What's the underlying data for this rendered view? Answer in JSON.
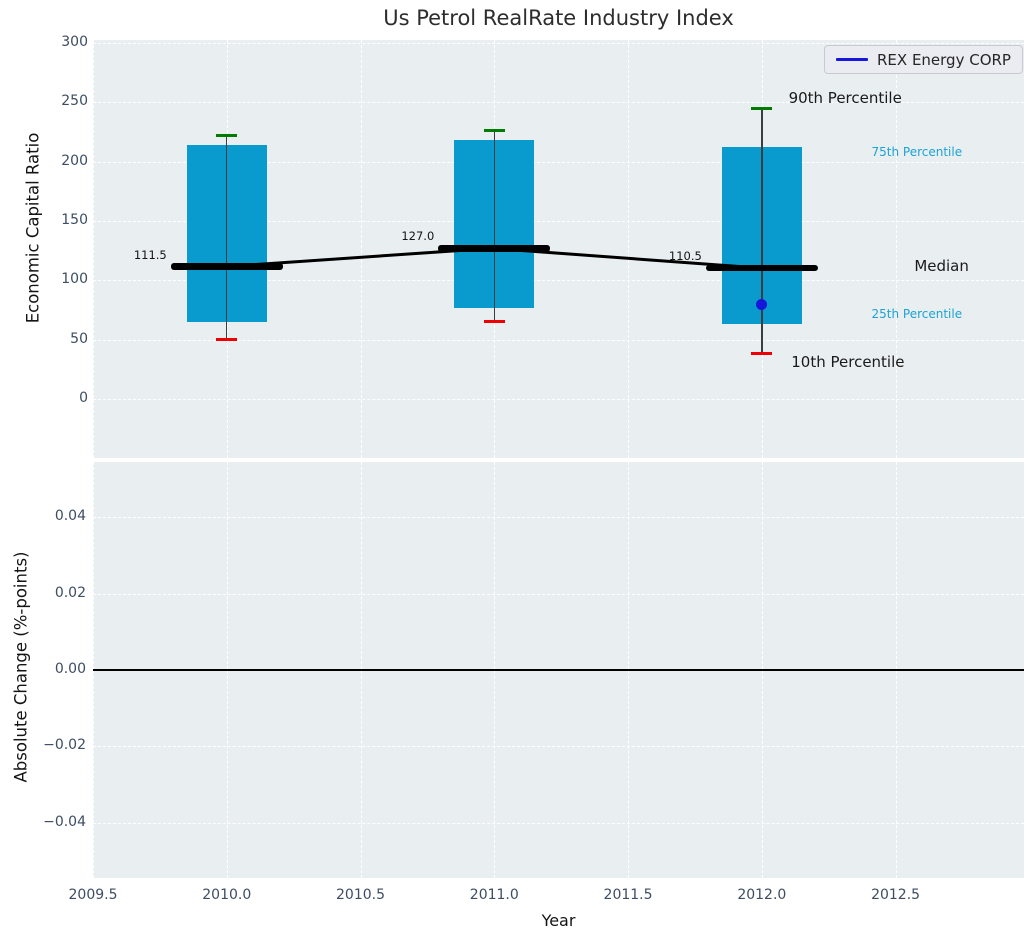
{
  "chart_data": {
    "type": "boxplot",
    "title": "Us Petrol RealRate Industry Index",
    "legend": {
      "label": "REX Energy CORP",
      "position": "upper right"
    },
    "x_axis": {
      "label": "Year",
      "range": [
        2009.5,
        2012.98
      ],
      "ticks": [
        {
          "v": 2009.5,
          "label": "2009.5"
        },
        {
          "v": 2010.0,
          "label": "2010.0"
        },
        {
          "v": 2010.5,
          "label": "2010.5"
        },
        {
          "v": 2011.0,
          "label": "2011.0"
        },
        {
          "v": 2011.5,
          "label": "2011.5"
        },
        {
          "v": 2012.0,
          "label": "2012.0"
        },
        {
          "v": 2012.5,
          "label": "2012.5"
        }
      ]
    },
    "panels": [
      {
        "id": "top",
        "ylabel": "Economic Capital Ratio",
        "range": [
          -49.7,
          302.5
        ],
        "grid": true,
        "ticks": [
          {
            "v": 300,
            "label": "300"
          },
          {
            "v": 250,
            "label": "250"
          },
          {
            "v": 200,
            "label": "200"
          },
          {
            "v": 150,
            "label": "150"
          },
          {
            "v": 100,
            "label": "100"
          },
          {
            "v": 50,
            "label": "50"
          },
          {
            "v": 0,
            "label": "0"
          }
        ],
        "years": [
          {
            "x": 2010,
            "p10": 50,
            "p25": 65,
            "median": 111.5,
            "median_label": "111.5",
            "p75": 214,
            "p90": 222
          },
          {
            "x": 2011,
            "p10": 65,
            "p25": 77,
            "median": 127.0,
            "median_label": "127.0",
            "p75": 218,
            "p90": 226
          },
          {
            "x": 2012,
            "p10": 38,
            "p25": 63,
            "median": 110.5,
            "median_label": "110.5",
            "p75": 212,
            "p90": 245
          }
        ],
        "company_points": [
          {
            "x": 2012,
            "y": 80
          }
        ],
        "annotations": [
          {
            "text": "90th Percentile",
            "x": 2012.1,
            "y": 252,
            "color": "dark",
            "size": 15
          },
          {
            "text": "75th Percentile",
            "x": 2012.41,
            "y": 207,
            "color": "cyan",
            "size": 12
          },
          {
            "text": "Median",
            "x": 2012.57,
            "y": 111,
            "color": "dark",
            "size": 15
          },
          {
            "text": "25th Percentile",
            "x": 2012.41,
            "y": 71,
            "color": "cyan",
            "size": 12
          },
          {
            "text": "10th Percentile",
            "x": 2012.11,
            "y": 30,
            "color": "dark",
            "size": 15
          }
        ]
      },
      {
        "id": "bottom",
        "ylabel": "Absolute Change (%-points)",
        "range": [
          -0.0545,
          0.0545
        ],
        "grid": true,
        "zero_line": 0.0,
        "ticks": [
          {
            "v": 0.04,
            "label": "0.04"
          },
          {
            "v": 0.02,
            "label": "0.02"
          },
          {
            "v": 0.0,
            "label": "0.00"
          },
          {
            "v": -0.02,
            "label": "−0.02"
          },
          {
            "v": -0.04,
            "label": "−0.04"
          }
        ],
        "series": []
      }
    ],
    "colors": {
      "box_fill": "#0a9bce",
      "cap_top": "#007d00",
      "cap_bottom": "#ee0000",
      "median": "#000000",
      "company": "#1717dc",
      "legend_line": "#1717dc",
      "annotation_cyan": "#1ba3d7",
      "annotation_dark": "#1a1a1a",
      "panel_bg": "#e9eef0",
      "grid": "#ffffff",
      "tick_label": "#3d4d63"
    }
  }
}
